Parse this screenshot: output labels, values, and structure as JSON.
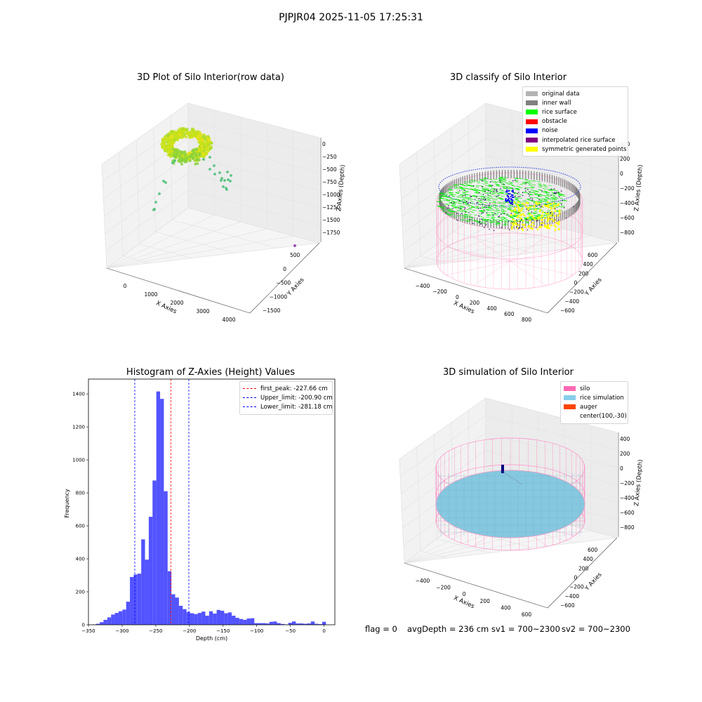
{
  "suptitle": "PJPJR04 2025-11-05 17:25:31",
  "panels": {
    "raw": {
      "title": "3D Plot of Silo Interior(row data)",
      "x_label": "X Axies",
      "y_label": "Y Axies",
      "z_label": "Z Axies (Depth)",
      "x_ticks": [
        "0",
        "1000",
        "2000",
        "3000",
        "4000"
      ],
      "y_ticks": [
        "500",
        "0",
        "−500",
        "−1000",
        "−1500"
      ],
      "z_ticks": [
        "0",
        "−250",
        "−500",
        "−750",
        "−1000",
        "−1250",
        "−1500",
        "−1750"
      ]
    },
    "classify": {
      "title": "3D classify of Silo Interior",
      "x_label": "X Axies",
      "y_label": "Y Axies",
      "z_label": "Z Axies (Depth)",
      "x_ticks": [
        "−400",
        "−200",
        "0",
        "200",
        "400",
        "600",
        "800"
      ],
      "y_ticks": [
        "600",
        "400",
        "200",
        "0",
        "−200",
        "−400",
        "−600"
      ],
      "z_ticks": [
        "400",
        "200",
        "0",
        "−200",
        "−400",
        "−600",
        "−800"
      ],
      "legend": [
        {
          "label": "original data",
          "color": "#b3b3b3"
        },
        {
          "label": "inner wall",
          "color": "#808080"
        },
        {
          "label": "rice surface",
          "color": "#00ff00"
        },
        {
          "label": "obstacle",
          "color": "#ff0000"
        },
        {
          "label": "noise",
          "color": "#0000ff"
        },
        {
          "label": "interpolated rice surface",
          "color": "#800080"
        },
        {
          "label": "symmetric generated points",
          "color": "#ffff00"
        }
      ]
    },
    "histogram": {
      "title": "Histogram of Z-Axies (Height) Values",
      "xlabel": "Depth (cm)",
      "ylabel": "Frequency",
      "legend": [
        {
          "label": "first_peak: -227.66 cm",
          "color": "#ff0000"
        },
        {
          "label": "Upper_limit: -200.90 cm",
          "color": "#0000ff"
        },
        {
          "label": "Lower_limit: -281.18 cm",
          "color": "#0000ff"
        }
      ]
    },
    "simulation": {
      "title": "3D simulation of Silo Interior",
      "x_label": "X Axies",
      "y_label": "Y Axies",
      "z_label": "Z Axies (Depth)",
      "x_ticks": [
        "−400",
        "−200",
        "0",
        "200",
        "400",
        "600"
      ],
      "y_ticks": [
        "600",
        "400",
        "200",
        "0",
        "−200",
        "−400",
        "−600"
      ],
      "z_ticks": [
        "400",
        "200",
        "0",
        "−200",
        "−400",
        "−600",
        "−800"
      ],
      "legend": [
        {
          "label": "silo",
          "color": "#ff69b4"
        },
        {
          "label": "rice simulation",
          "color": "#87ceeb"
        },
        {
          "label": "auger",
          "color": "#ff4500"
        },
        {
          "label": "center(100,-30)",
          "color": ""
        }
      ]
    }
  },
  "status": {
    "flag": "flag = 0",
    "avg": "avgDepth = 236 cm",
    "sv1": "sv1 = 700~2300",
    "sv2": "sv2 = 700~2300"
  },
  "chart_data": {
    "type": "bar",
    "title": "Histogram of Z-Axies (Height) Values",
    "xlabel": "Depth (cm)",
    "ylabel": "Frequency",
    "xlim": [
      -350,
      16
    ],
    "ylim": [
      0,
      1490
    ],
    "x_ticks": [
      -350,
      -300,
      -250,
      -200,
      -150,
      -100,
      -50,
      0
    ],
    "y_ticks": [
      0,
      200,
      400,
      600,
      800,
      1000,
      1200,
      1400
    ],
    "bin_width": 5.6,
    "bin_centers": [
      -341.6,
      -336.0,
      -330.4,
      -324.8,
      -319.2,
      -313.6,
      -308.0,
      -302.4,
      -296.8,
      -291.2,
      -285.6,
      -280.0,
      -274.4,
      -268.8,
      -263.2,
      -257.6,
      -252.0,
      -246.4,
      -240.8,
      -235.2,
      -229.6,
      -224.0,
      -218.4,
      -212.8,
      -207.2,
      -201.6,
      -196.0,
      -190.4,
      -184.8,
      -179.2,
      -173.6,
      -168.0,
      -162.4,
      -156.8,
      -151.2,
      -145.6,
      -140.0,
      -134.4,
      -128.8,
      -123.2,
      -117.6,
      -112.0,
      -106.4,
      -100.8,
      -95.2,
      -89.6,
      -84.0,
      -78.4,
      -72.8,
      -67.2,
      -61.6,
      -56.0,
      -50.4,
      -44.8,
      -39.2,
      -33.6,
      -28.0,
      -22.4,
      -16.8,
      -11.2,
      -5.6,
      0.0
    ],
    "values": [
      2,
      6,
      16,
      30,
      45,
      62,
      72,
      82,
      92,
      140,
      290,
      305,
      310,
      518,
      395,
      655,
      875,
      1415,
      1370,
      810,
      325,
      185,
      165,
      115,
      95,
      78,
      70,
      65,
      72,
      80,
      55,
      82,
      68,
      90,
      85,
      70,
      75,
      55,
      42,
      35,
      30,
      38,
      40,
      10,
      10,
      10,
      8,
      18,
      20,
      10,
      5,
      2,
      12,
      20,
      8,
      8,
      6,
      8,
      20,
      6,
      4,
      18
    ],
    "lines": [
      {
        "name": "first_peak: -227.66 cm",
        "x": -227.66,
        "color": "#ff0000"
      },
      {
        "name": "Upper_limit: -200.90 cm",
        "x": -200.9,
        "color": "#0000ff"
      },
      {
        "name": "Lower_limit: -281.18 cm",
        "x": -281.18,
        "color": "#0000ff"
      }
    ],
    "bar_color": "#4d4dff"
  }
}
